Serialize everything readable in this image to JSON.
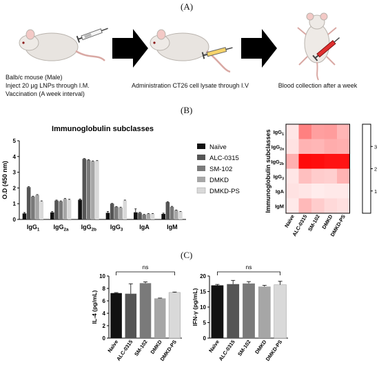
{
  "panels": {
    "a": "(A)",
    "b": "(B)",
    "c": "(C)"
  },
  "protocol": {
    "step1_line1": "Balb/c mouse (Male)",
    "step1_line2": "Inject 20 µg LNPs through I.M.",
    "step1_line3": "Vaccination (A week interval)",
    "step2": "Administration CT26 cell lysate through I.V",
    "step3": "Blood collection after a week"
  },
  "colors": {
    "naive": "#111111",
    "alc": "#555555",
    "sm": "#7a7a7a",
    "dmkd": "#a6a6a6",
    "dmkdps": "#d9d9d9"
  },
  "chart_data": [
    {
      "type": "bar",
      "title": "Immunoglobulin subclasses",
      "ylabel": "O.D (450 nm)",
      "ylim": [
        0,
        5
      ],
      "yticks": [
        "0",
        "1",
        "2",
        "3",
        "4",
        "5"
      ],
      "categories": [
        "IgG1",
        "IgG2a",
        "IgG2b",
        "IgG3",
        "IgA",
        "IgM"
      ],
      "category_labels": [
        {
          "base": "IgG",
          "sub": "1"
        },
        {
          "base": "IgG",
          "sub": "2a"
        },
        {
          "base": "IgG",
          "sub": "2b"
        },
        {
          "base": "IgG",
          "sub": "3"
        },
        {
          "base": "IgA",
          "sub": ""
        },
        {
          "base": "IgM",
          "sub": ""
        }
      ],
      "series": [
        {
          "name": "Naïve",
          "values": [
            0.38,
            0.45,
            1.25,
            0.42,
            0.45,
            0.35
          ],
          "errors": [
            0.06,
            0.05,
            0.05,
            0.08,
            0.22,
            0.05
          ]
        },
        {
          "name": "ALC-0315",
          "values": [
            2.05,
            1.2,
            3.85,
            1.0,
            0.42,
            1.1
          ],
          "errors": [
            0.03,
            0.03,
            0.02,
            0.02,
            0.03,
            0.03
          ]
        },
        {
          "name": "SM-102",
          "values": [
            1.45,
            1.15,
            3.78,
            0.8,
            0.3,
            0.8
          ],
          "errors": [
            0.03,
            0.03,
            0.02,
            0.02,
            0.02,
            0.03
          ]
        },
        {
          "name": "DMKD",
          "values": [
            1.55,
            1.3,
            3.7,
            0.75,
            0.35,
            0.58
          ],
          "errors": [
            0.03,
            0.03,
            0.02,
            0.03,
            0.02,
            0.02
          ]
        },
        {
          "name": "DMKD-PS",
          "values": [
            1.15,
            1.25,
            3.72,
            1.2,
            0.35,
            0.48
          ],
          "errors": [
            0.03,
            0.03,
            0.02,
            0.03,
            0.02,
            0.02
          ]
        }
      ],
      "legend": "right"
    },
    {
      "type": "heatmap",
      "ylabel": "Immunoglobulin subclasses",
      "rows": [
        {
          "base": "IgG",
          "sub": "1"
        },
        {
          "base": "IgG",
          "sub": "2a"
        },
        {
          "base": "IgG",
          "sub": "2b"
        },
        {
          "base": "IgG",
          "sub": "3"
        },
        {
          "base": "IgA",
          "sub": ""
        },
        {
          "base": "IgM",
          "sub": ""
        }
      ],
      "columns": [
        "Naïve",
        "ALC-0315",
        "SM-102",
        "DMKD",
        "DMKD-PS"
      ],
      "values": [
        [
          0.4,
          2.0,
          1.5,
          1.55,
          1.15
        ],
        [
          0.45,
          1.2,
          1.15,
          1.3,
          1.25
        ],
        [
          1.25,
          3.85,
          3.8,
          3.7,
          3.7
        ],
        [
          0.4,
          1.0,
          0.8,
          0.75,
          1.2
        ],
        [
          0.45,
          0.4,
          0.3,
          0.35,
          0.35
        ],
        [
          0.35,
          1.1,
          0.8,
          0.6,
          0.5
        ]
      ],
      "colorbar_range": [
        0,
        4
      ],
      "colorbar_ticks": [
        "1",
        "2",
        "3"
      ]
    },
    {
      "type": "bar",
      "ylabel": "IL-4 (pg/mL)",
      "ylim": [
        0,
        10
      ],
      "yticks": [
        "0",
        "2",
        "4",
        "6",
        "8",
        "10"
      ],
      "categories": [
        "Naïve",
        "ALC-0315",
        "SM-102",
        "DMKD",
        "DMKD-PS"
      ],
      "values": [
        7.25,
        7.15,
        8.85,
        6.4,
        7.35
      ],
      "errors": [
        0.08,
        1.6,
        0.2,
        0.05,
        0.07
      ],
      "annotation": "ns"
    },
    {
      "type": "bar",
      "ylabel": "IFN-γ (pg/mL)",
      "ylim": [
        0,
        20
      ],
      "yticks": [
        "0",
        "5",
        "10",
        "15",
        "20"
      ],
      "categories": [
        "Naïve",
        "ALC-0315",
        "SM-102",
        "DMKD",
        "DMKD-PS"
      ],
      "values": [
        17.0,
        17.4,
        17.6,
        16.6,
        17.2
      ],
      "errors": [
        0.3,
        1.2,
        0.6,
        0.4,
        1.1
      ],
      "annotation": "ns"
    }
  ]
}
